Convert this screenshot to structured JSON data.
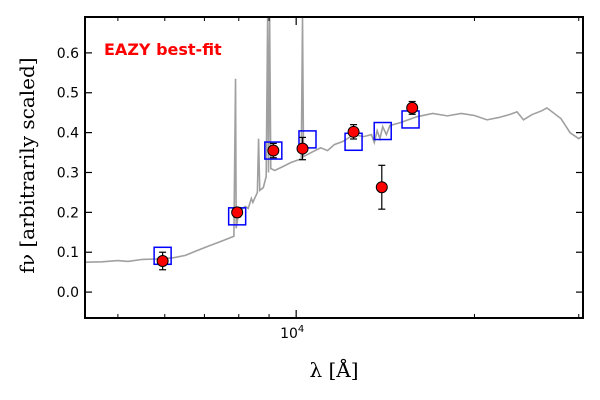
{
  "chart_data": {
    "type": "scatter",
    "title": "",
    "xlabel": "λ [Å]",
    "ylabel": "fν [arbitrarily scaled]",
    "xscale": "log",
    "xlim": [
      4400,
      30500
    ],
    "ylim": [
      -0.065,
      0.69
    ],
    "grid": false,
    "annotation": {
      "text": "EAZY best-fit",
      "color": "#ff0000",
      "placement": "top-left"
    },
    "x_ticks": [
      {
        "value": 10000,
        "label": "10^4"
      }
    ],
    "y_ticks": [
      {
        "value": 0.0,
        "label": "0.0"
      },
      {
        "value": 0.1,
        "label": "0.1"
      },
      {
        "value": 0.2,
        "label": "0.2"
      },
      {
        "value": 0.3,
        "label": "0.3"
      },
      {
        "value": 0.4,
        "label": "0.4"
      },
      {
        "value": 0.5,
        "label": "0.5"
      },
      {
        "value": 0.6,
        "label": "0.6"
      }
    ],
    "series": [
      {
        "name": "Observed photometry",
        "kind": "errorbar",
        "marker_color": "#ff0000",
        "points": [
          {
            "x": 5950,
            "y": 0.078,
            "err": 0.022
          },
          {
            "x": 7950,
            "y": 0.2,
            "err": 0.012
          },
          {
            "x": 9150,
            "y": 0.355,
            "err": 0.018
          },
          {
            "x": 10250,
            "y": 0.36,
            "err": 0.028
          },
          {
            "x": 12500,
            "y": 0.402,
            "err": 0.018
          },
          {
            "x": 13950,
            "y": 0.263,
            "err": 0.055
          },
          {
            "x": 15700,
            "y": 0.462,
            "err": 0.016
          }
        ]
      },
      {
        "name": "Model band fluxes",
        "kind": "square",
        "marker_color": "#0000ff",
        "points": [
          {
            "x": 5950,
            "y": 0.091
          },
          {
            "x": 7950,
            "y": 0.19
          },
          {
            "x": 9150,
            "y": 0.355
          },
          {
            "x": 10450,
            "y": 0.383
          },
          {
            "x": 12500,
            "y": 0.377
          },
          {
            "x": 14000,
            "y": 0.404
          },
          {
            "x": 15600,
            "y": 0.433
          }
        ]
      },
      {
        "name": "EAZY template",
        "kind": "line",
        "color": "#a0a0a0",
        "points": [
          {
            "x": 4400,
            "y": 0.075
          },
          {
            "x": 4700,
            "y": 0.076
          },
          {
            "x": 5000,
            "y": 0.079
          },
          {
            "x": 5200,
            "y": 0.077
          },
          {
            "x": 5500,
            "y": 0.082
          },
          {
            "x": 5800,
            "y": 0.083
          },
          {
            "x": 6200,
            "y": 0.086
          },
          {
            "x": 6500,
            "y": 0.092
          },
          {
            "x": 6800,
            "y": 0.104
          },
          {
            "x": 7100,
            "y": 0.115
          },
          {
            "x": 7400,
            "y": 0.125
          },
          {
            "x": 7700,
            "y": 0.135
          },
          {
            "x": 7850,
            "y": 0.14
          },
          {
            "x": 7900,
            "y": 0.535
          },
          {
            "x": 7920,
            "y": 0.16
          },
          {
            "x": 8000,
            "y": 0.2
          },
          {
            "x": 8200,
            "y": 0.215
          },
          {
            "x": 8300,
            "y": 0.21
          },
          {
            "x": 8400,
            "y": 0.235
          },
          {
            "x": 8450,
            "y": 0.225
          },
          {
            "x": 8600,
            "y": 0.25
          },
          {
            "x": 8640,
            "y": 0.385
          },
          {
            "x": 8680,
            "y": 0.255
          },
          {
            "x": 8800,
            "y": 0.262
          },
          {
            "x": 8900,
            "y": 0.29
          },
          {
            "x": 8950,
            "y": 0.69
          },
          {
            "x": 8980,
            "y": 0.3
          },
          {
            "x": 9020,
            "y": 0.69
          },
          {
            "x": 9060,
            "y": 0.31
          },
          {
            "x": 9200,
            "y": 0.305
          },
          {
            "x": 9500,
            "y": 0.315
          },
          {
            "x": 9800,
            "y": 0.325
          },
          {
            "x": 10100,
            "y": 0.332
          },
          {
            "x": 10200,
            "y": 0.334
          },
          {
            "x": 10250,
            "y": 0.69
          },
          {
            "x": 10290,
            "y": 0.34
          },
          {
            "x": 10600,
            "y": 0.35
          },
          {
            "x": 11000,
            "y": 0.362
          },
          {
            "x": 11300,
            "y": 0.355
          },
          {
            "x": 11600,
            "y": 0.37
          },
          {
            "x": 12000,
            "y": 0.378
          },
          {
            "x": 12500,
            "y": 0.395
          },
          {
            "x": 13000,
            "y": 0.39
          },
          {
            "x": 13400,
            "y": 0.395
          },
          {
            "x": 13550,
            "y": 0.375
          },
          {
            "x": 13700,
            "y": 0.405
          },
          {
            "x": 13850,
            "y": 0.385
          },
          {
            "x": 14000,
            "y": 0.415
          },
          {
            "x": 14200,
            "y": 0.395
          },
          {
            "x": 14400,
            "y": 0.418
          },
          {
            "x": 15000,
            "y": 0.425
          },
          {
            "x": 16000,
            "y": 0.44
          },
          {
            "x": 17000,
            "y": 0.448
          },
          {
            "x": 18000,
            "y": 0.442
          },
          {
            "x": 19000,
            "y": 0.448
          },
          {
            "x": 20000,
            "y": 0.443
          },
          {
            "x": 21000,
            "y": 0.432
          },
          {
            "x": 22000,
            "y": 0.438
          },
          {
            "x": 23000,
            "y": 0.446
          },
          {
            "x": 23600,
            "y": 0.452
          },
          {
            "x": 24200,
            "y": 0.432
          },
          {
            "x": 25000,
            "y": 0.445
          },
          {
            "x": 26000,
            "y": 0.455
          },
          {
            "x": 26500,
            "y": 0.462
          },
          {
            "x": 27000,
            "y": 0.453
          },
          {
            "x": 28000,
            "y": 0.435
          },
          {
            "x": 29000,
            "y": 0.4
          },
          {
            "x": 30000,
            "y": 0.385
          },
          {
            "x": 30500,
            "y": 0.392
          }
        ]
      }
    ]
  }
}
